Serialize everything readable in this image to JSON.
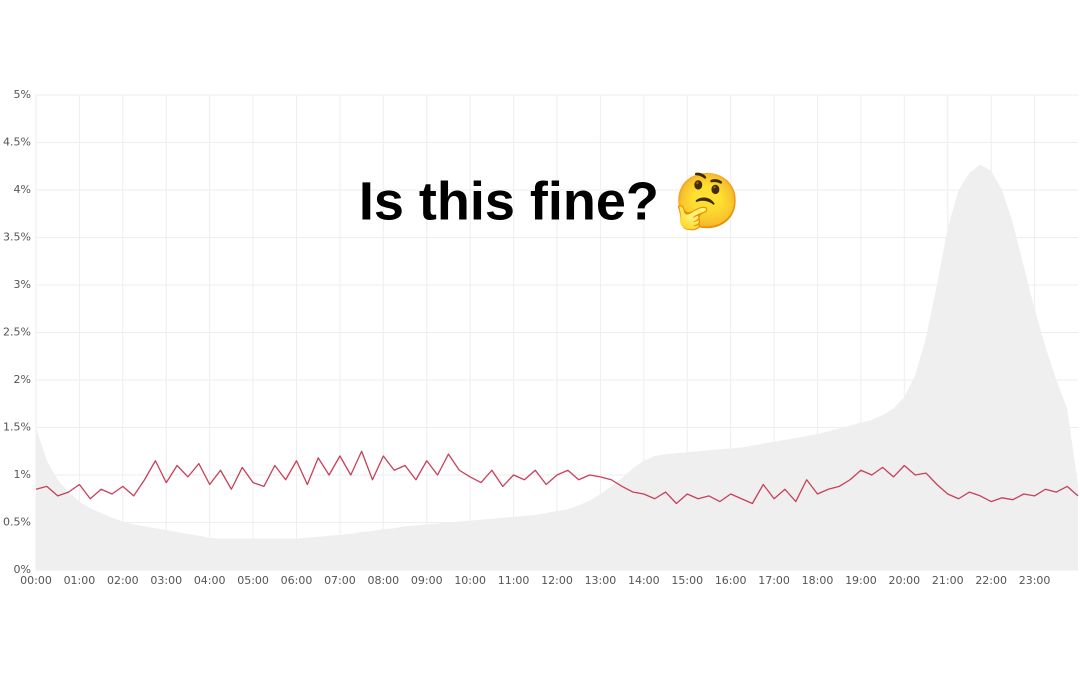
{
  "chart_data": {
    "type": "line",
    "title": "Is this fine? 🤔",
    "x": [
      0,
      0.25,
      0.5,
      0.75,
      1,
      1.25,
      1.5,
      1.75,
      2,
      2.25,
      2.5,
      2.75,
      3,
      3.25,
      3.5,
      3.75,
      4,
      4.25,
      4.5,
      4.75,
      5,
      5.25,
      5.5,
      5.75,
      6,
      6.25,
      6.5,
      6.75,
      7,
      7.25,
      7.5,
      7.75,
      8,
      8.25,
      8.5,
      8.75,
      9,
      9.25,
      9.5,
      9.75,
      10,
      10.25,
      10.5,
      10.75,
      11,
      11.25,
      11.5,
      11.75,
      12,
      12.25,
      12.5,
      12.75,
      13,
      13.25,
      13.5,
      13.75,
      14,
      14.25,
      14.5,
      14.75,
      15,
      15.25,
      15.5,
      15.75,
      16,
      16.25,
      16.5,
      16.75,
      17,
      17.25,
      17.5,
      17.75,
      18,
      18.25,
      18.5,
      18.75,
      19,
      19.25,
      19.5,
      19.75,
      20,
      20.25,
      20.5,
      20.75,
      21,
      21.25,
      21.5,
      21.75,
      22,
      22.25,
      22.5,
      22.75,
      23,
      23.25,
      23.5,
      23.75,
      24
    ],
    "series": [
      {
        "color": "#efefef",
        "fill": true,
        "values": [
          1.5,
          1.15,
          0.95,
          0.82,
          0.72,
          0.65,
          0.6,
          0.55,
          0.51,
          0.48,
          0.46,
          0.44,
          0.42,
          0.4,
          0.38,
          0.36,
          0.34,
          0.33,
          0.33,
          0.33,
          0.33,
          0.33,
          0.33,
          0.33,
          0.33,
          0.34,
          0.35,
          0.36,
          0.37,
          0.38,
          0.4,
          0.41,
          0.43,
          0.44,
          0.46,
          0.47,
          0.48,
          0.49,
          0.5,
          0.51,
          0.52,
          0.53,
          0.54,
          0.55,
          0.56,
          0.57,
          0.58,
          0.6,
          0.62,
          0.64,
          0.68,
          0.73,
          0.8,
          0.88,
          0.97,
          1.07,
          1.15,
          1.2,
          1.22,
          1.23,
          1.24,
          1.25,
          1.26,
          1.27,
          1.28,
          1.29,
          1.31,
          1.33,
          1.35,
          1.37,
          1.39,
          1.41,
          1.43,
          1.46,
          1.49,
          1.52,
          1.55,
          1.58,
          1.63,
          1.7,
          1.82,
          2.05,
          2.45,
          3.0,
          3.6,
          4.0,
          4.18,
          4.27,
          4.2,
          4.0,
          3.65,
          3.2,
          2.75,
          2.35,
          2.0,
          1.7,
          0.9
        ]
      },
      {
        "color": "#c8405a",
        "fill": false,
        "values": [
          0.85,
          0.88,
          0.78,
          0.82,
          0.9,
          0.75,
          0.85,
          0.8,
          0.88,
          0.78,
          0.95,
          1.15,
          0.92,
          1.1,
          0.98,
          1.12,
          0.9,
          1.05,
          0.85,
          1.08,
          0.92,
          0.88,
          1.1,
          0.95,
          1.15,
          0.9,
          1.18,
          1.0,
          1.2,
          1.0,
          1.25,
          0.95,
          1.2,
          1.05,
          1.1,
          0.95,
          1.15,
          1.0,
          1.22,
          1.05,
          0.98,
          0.92,
          1.05,
          0.88,
          1.0,
          0.95,
          1.05,
          0.9,
          1.0,
          1.05,
          0.95,
          1.0,
          0.98,
          0.95,
          0.88,
          0.82,
          0.8,
          0.75,
          0.82,
          0.7,
          0.8,
          0.75,
          0.78,
          0.72,
          0.8,
          0.75,
          0.7,
          0.9,
          0.75,
          0.85,
          0.72,
          0.95,
          0.8,
          0.85,
          0.88,
          0.95,
          1.05,
          1.0,
          1.08,
          0.98,
          1.1,
          1.0,
          1.02,
          0.9,
          0.8,
          0.75,
          0.82,
          0.78,
          0.72,
          0.76,
          0.74,
          0.8,
          0.78,
          0.85,
          0.82,
          0.88,
          0.78
        ]
      }
    ],
    "xlim": [
      0,
      24
    ],
    "xticks": [
      {
        "value": 0,
        "label": "00:00"
      },
      {
        "value": 1,
        "label": "01:00"
      },
      {
        "value": 2,
        "label": "02:00"
      },
      {
        "value": 3,
        "label": "03:00"
      },
      {
        "value": 4,
        "label": "04:00"
      },
      {
        "value": 5,
        "label": "05:00"
      },
      {
        "value": 6,
        "label": "06:00"
      },
      {
        "value": 7,
        "label": "07:00"
      },
      {
        "value": 8,
        "label": "08:00"
      },
      {
        "value": 9,
        "label": "09:00"
      },
      {
        "value": 10,
        "label": "10:00"
      },
      {
        "value": 11,
        "label": "11:00"
      },
      {
        "value": 12,
        "label": "12:00"
      },
      {
        "value": 13,
        "label": "13:00"
      },
      {
        "value": 14,
        "label": "14:00"
      },
      {
        "value": 15,
        "label": "15:00"
      },
      {
        "value": 16,
        "label": "16:00"
      },
      {
        "value": 17,
        "label": "17:00"
      },
      {
        "value": 18,
        "label": "18:00"
      },
      {
        "value": 19,
        "label": "19:00"
      },
      {
        "value": 20,
        "label": "20:00"
      },
      {
        "value": 21,
        "label": "21:00"
      },
      {
        "value": 22,
        "label": "22:00"
      },
      {
        "value": 23,
        "label": "23:00"
      }
    ],
    "ylim": [
      0,
      5
    ],
    "yticks": [
      {
        "value": 0,
        "label": "0%"
      },
      {
        "value": 0.5,
        "label": "0.5%"
      },
      {
        "value": 1,
        "label": "1%"
      },
      {
        "value": 1.5,
        "label": "1.5%"
      },
      {
        "value": 2,
        "label": "2%"
      },
      {
        "value": 2.5,
        "label": "2.5%"
      },
      {
        "value": 3,
        "label": "3%"
      },
      {
        "value": 3.5,
        "label": "3.5%"
      },
      {
        "value": 4,
        "label": "4%"
      },
      {
        "value": 4.5,
        "label": "4.5%"
      },
      {
        "value": 5,
        "label": "5%"
      }
    ],
    "grid": true
  }
}
